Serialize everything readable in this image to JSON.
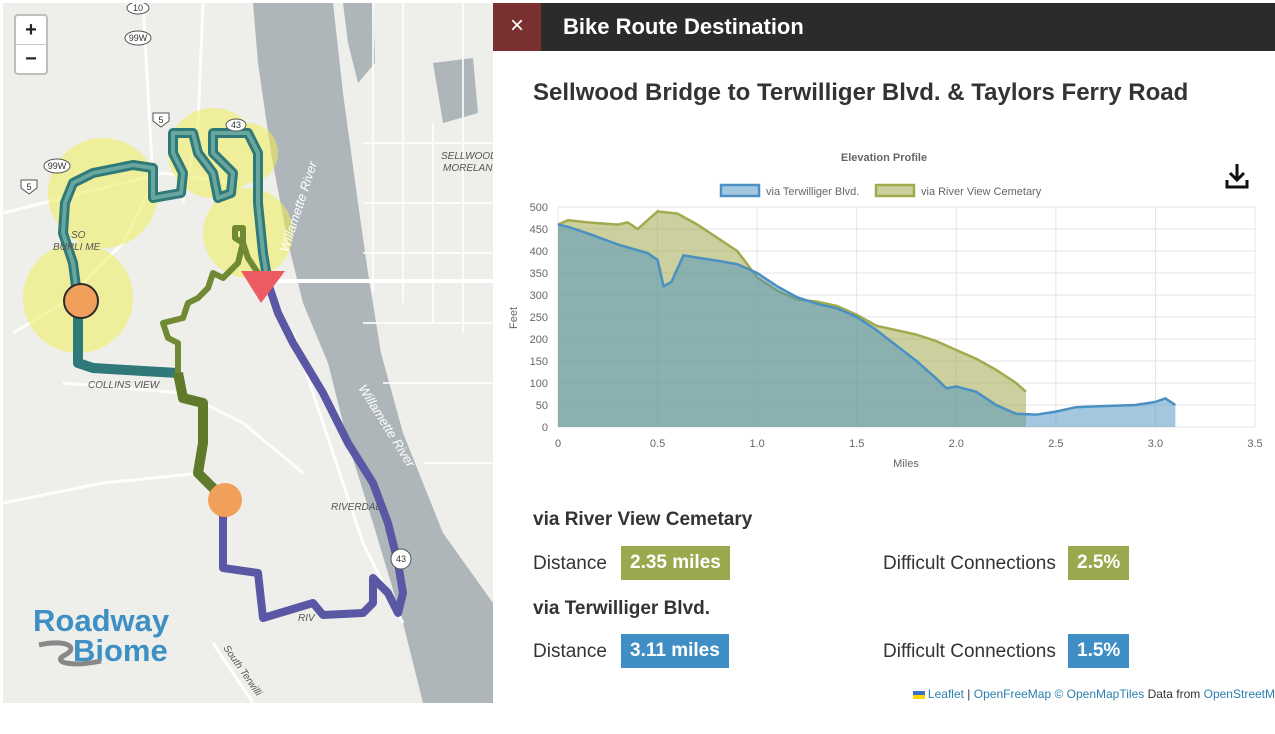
{
  "map": {
    "zoom_in": "+",
    "zoom_out": "−",
    "labels": {
      "highway_10": "10",
      "highway_99w_top": "99W",
      "highway_5_top": "5",
      "highway_43": "43",
      "highway_99w_left": "99W",
      "highway_5_left": "5",
      "river_top": "Willamette River",
      "river_bottom": "Willamette River",
      "sellwood": "SELLWOOD",
      "moreland": "MORELAN",
      "burlingame_1": "SO",
      "burlingame_2": "BURLI   ME",
      "collins_view": "COLLINS VIEW",
      "riverdale": "RIVERDAL",
      "riv": "RIV",
      "south_terwilliger": "South Terwilli",
      "highway_43_bottom": "43"
    },
    "logo_line1": "Roadway",
    "logo_line2": "Biome"
  },
  "panel": {
    "close_label": "×",
    "header_title": "Bike Route Destination",
    "route_title": "Sellwood Bridge to Terwilliger Blvd. & Taylors Ferry Road",
    "download_icon": "download-icon"
  },
  "chart_data": {
    "type": "area",
    "title": "Elevation Profile",
    "xlabel": "Miles",
    "ylabel": "Feet",
    "xlim": [
      0,
      3.5
    ],
    "ylim": [
      0,
      500
    ],
    "xticks": [
      0,
      0.5,
      1.0,
      1.5,
      2.0,
      2.5,
      3.0,
      3.5
    ],
    "xtick_labels": [
      "0",
      "0.5",
      "1.0",
      "1.5",
      "2.0",
      "2.5",
      "3.0",
      "3.5"
    ],
    "yticks": [
      0,
      50,
      100,
      150,
      200,
      250,
      300,
      350,
      400,
      450,
      500
    ],
    "grid": true,
    "legend": "top",
    "series": [
      {
        "name": "via Terwilliger Blvd.",
        "color": "#4a90c2",
        "x": [
          0,
          0.05,
          0.15,
          0.3,
          0.45,
          0.5,
          0.53,
          0.57,
          0.63,
          0.7,
          0.8,
          0.9,
          1.0,
          1.1,
          1.2,
          1.3,
          1.4,
          1.5,
          1.6,
          1.7,
          1.8,
          1.9,
          1.95,
          2.0,
          2.1,
          2.2,
          2.3,
          2.4,
          2.5,
          2.6,
          2.7,
          2.9,
          3.0,
          3.05,
          3.1
        ],
        "y": [
          460,
          455,
          440,
          415,
          395,
          380,
          320,
          330,
          390,
          385,
          378,
          370,
          350,
          320,
          295,
          280,
          270,
          250,
          220,
          185,
          150,
          110,
          88,
          92,
          80,
          50,
          30,
          28,
          35,
          45,
          47,
          50,
          57,
          65,
          50
        ]
      },
      {
        "name": "via River View Cemetary",
        "color": "#a2aa4e",
        "x": [
          0,
          0.05,
          0.15,
          0.3,
          0.35,
          0.4,
          0.45,
          0.5,
          0.6,
          0.7,
          0.8,
          0.9,
          1.0,
          1.1,
          1.2,
          1.3,
          1.4,
          1.5,
          1.6,
          1.7,
          1.8,
          1.9,
          2.0,
          2.1,
          2.2,
          2.3,
          2.35
        ],
        "y": [
          460,
          470,
          465,
          460,
          465,
          450,
          470,
          490,
          485,
          460,
          430,
          400,
          340,
          310,
          290,
          285,
          275,
          255,
          230,
          220,
          210,
          195,
          175,
          155,
          130,
          100,
          80
        ]
      }
    ]
  },
  "routes": [
    {
      "heading": "via River View Cemetary",
      "distance_label": "Distance",
      "distance_value": "2.35 miles",
      "difficult_label": "Difficult Connections",
      "difficult_value": "2.5%",
      "color": "#9aa84e"
    },
    {
      "heading": "via Terwilliger Blvd.",
      "distance_label": "Distance",
      "distance_value": "3.11 miles",
      "difficult_label": "Difficult Connections",
      "difficult_value": "1.5%",
      "color": "#3f8fc6"
    }
  ],
  "attribution": {
    "leaflet": "Leaflet",
    "sep": "|",
    "openfreemap": "OpenFreeMap",
    "openmaptiles": "© OpenMapTiles",
    "data_from": "Data from",
    "openstreetmap": "OpenStreetM"
  }
}
